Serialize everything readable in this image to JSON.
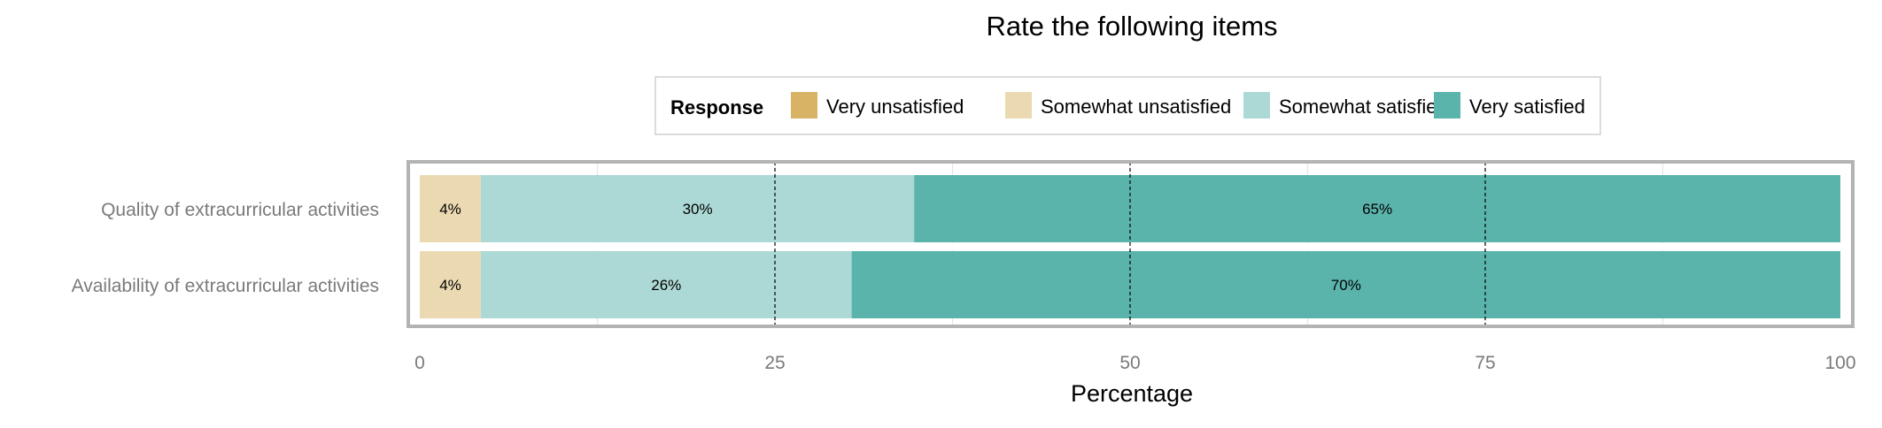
{
  "chart_data": {
    "type": "bar",
    "orientation": "horizontal",
    "stacked": true,
    "title": "Rate the following items",
    "xlabel": "Percentage",
    "ylabel": "",
    "xlim": [
      0,
      100
    ],
    "xticks": [
      0,
      25,
      50,
      75,
      100
    ],
    "x_tick_labels": [
      "0",
      "25",
      "50",
      "75",
      "100"
    ],
    "grid": true,
    "legend": {
      "title": "Response",
      "position": "top",
      "entries": [
        "Very unsatisfied",
        "Somewhat unsatisfied",
        "Somewhat satisfied",
        "Very satisfied"
      ]
    },
    "categories": [
      "Quality of extracurricular activities",
      "Availability of extracurricular activities"
    ],
    "series": [
      {
        "name": "Very unsatisfied",
        "color": "#d8b365",
        "values": [
          0,
          0
        ],
        "labels": [
          "",
          ""
        ]
      },
      {
        "name": "Somewhat unsatisfied",
        "color": "#ebd9b2",
        "values": [
          4.3,
          4.3
        ],
        "labels": [
          "4%",
          "4%"
        ]
      },
      {
        "name": "Somewhat satisfied",
        "color": "#acd9d5",
        "values": [
          30.5,
          26.1
        ],
        "labels": [
          "30%",
          "26%"
        ]
      },
      {
        "name": "Very satisfied",
        "color": "#5ab4ac",
        "values": [
          65.2,
          69.6
        ],
        "labels": [
          "65%",
          "70%"
        ]
      }
    ],
    "colors": {
      "panel_border": "#b3b3b3",
      "grid": "#e6e6e6",
      "reference_line": "#000000",
      "background": "#ffffff"
    }
  }
}
